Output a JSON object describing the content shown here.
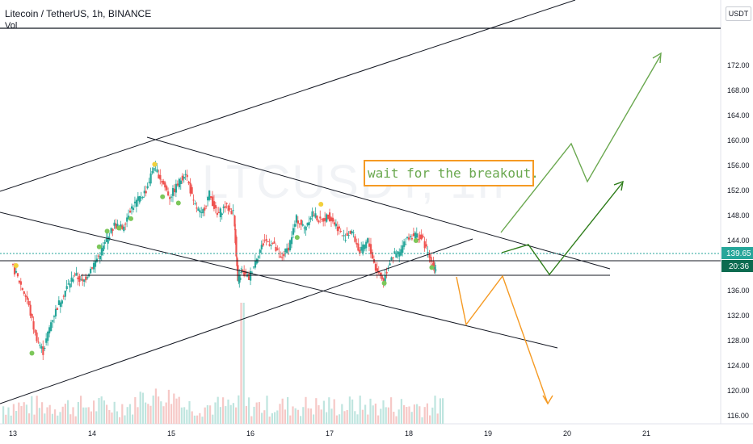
{
  "header": {
    "title": "Litecoin / TetherUS, 1h, BINANCE",
    "sub": "Vol"
  },
  "currency_button": "USDT",
  "note": "wait for the breakout.",
  "watermark": "LTCUSDT, 1h",
  "colors": {
    "up": "#26a69a",
    "down": "#ef5350",
    "price_tag": "#26a69a",
    "time_tag": "#0c6b50",
    "bull_path": "#6aa84f",
    "bull_path_dark": "#2e7d1a",
    "bear_path": "#f59a23",
    "dot_green": "#7cc75a",
    "dot_yellow": "#f2d03c"
  },
  "price_tag": "139.65",
  "time_tag": "20:36",
  "chart_data": {
    "type": "candlestick",
    "y_ticks": [
      "116.00",
      "120.00",
      "124.00",
      "128.00",
      "132.00",
      "136.00",
      "140.00",
      "144.00",
      "148.00",
      "152.00",
      "156.00",
      "160.00",
      "164.00",
      "168.00",
      "172.00"
    ],
    "x_ticks": [
      "13",
      "14",
      "15",
      "16",
      "17",
      "18",
      "19",
      "20",
      "21"
    ],
    "ylim": [
      115,
      175
    ],
    "current_price": 139.65,
    "horizontal_levels": [
      173.0,
      138.4,
      136.2
    ],
    "price_path": [
      [
        13.0,
        140.2
      ],
      [
        13.1,
        137.5
      ],
      [
        13.2,
        134.5
      ],
      [
        13.3,
        129.0
      ],
      [
        13.4,
        126.2
      ],
      [
        13.5,
        131.0
      ],
      [
        13.6,
        134.0
      ],
      [
        13.7,
        136.5
      ],
      [
        13.8,
        138.6
      ],
      [
        13.9,
        137.2
      ],
      [
        14.0,
        139.5
      ],
      [
        14.1,
        141.5
      ],
      [
        14.2,
        144.0
      ],
      [
        14.3,
        146.5
      ],
      [
        14.4,
        146.0
      ],
      [
        14.5,
        149.0
      ],
      [
        14.6,
        150.5
      ],
      [
        14.7,
        152.0
      ],
      [
        14.8,
        156.0
      ],
      [
        14.9,
        153.5
      ],
      [
        15.0,
        151.0
      ],
      [
        15.1,
        153.0
      ],
      [
        15.2,
        155.0
      ],
      [
        15.3,
        150.0
      ],
      [
        15.4,
        148.0
      ],
      [
        15.5,
        151.5
      ],
      [
        15.6,
        148.0
      ],
      [
        15.7,
        149.5
      ],
      [
        15.8,
        148.5
      ],
      [
        15.85,
        137.5
      ],
      [
        15.9,
        139.0
      ],
      [
        16.0,
        138.0
      ],
      [
        16.1,
        141.5
      ],
      [
        16.2,
        144.0
      ],
      [
        16.3,
        143.5
      ],
      [
        16.4,
        141.0
      ],
      [
        16.5,
        143.0
      ],
      [
        16.6,
        147.5
      ],
      [
        16.7,
        146.0
      ],
      [
        16.8,
        148.5
      ],
      [
        16.9,
        147.0
      ],
      [
        17.0,
        148.0
      ],
      [
        17.1,
        146.5
      ],
      [
        17.2,
        144.5
      ],
      [
        17.3,
        145.5
      ],
      [
        17.4,
        142.0
      ],
      [
        17.5,
        144.0
      ],
      [
        17.6,
        139.5
      ],
      [
        17.7,
        137.6
      ],
      [
        17.8,
        141.5
      ],
      [
        17.9,
        142.0
      ],
      [
        18.0,
        144.5
      ],
      [
        18.1,
        145.0
      ],
      [
        18.2,
        144.0
      ],
      [
        18.3,
        140.5
      ],
      [
        18.35,
        139.6
      ]
    ],
    "volume_peak_day": 15.9
  }
}
